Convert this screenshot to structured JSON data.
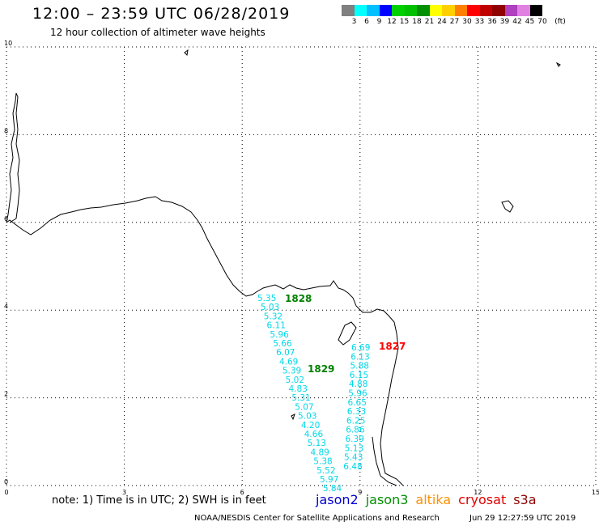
{
  "header": {
    "title": "12:00 – 23:59 UTC 06/28/2019",
    "subtitle": "12 hour collection of altimeter wave heights"
  },
  "legend": {
    "swatches": [
      "#808080",
      "#00ffff",
      "#00c0ff",
      "#0000ff",
      "#00d000",
      "#00c000",
      "#009000",
      "#ffff00",
      "#ffd000",
      "#ff8000",
      "#ff0000",
      "#c00000",
      "#900000",
      "#b040c0",
      "#e080e0",
      "#000000"
    ],
    "labels": [
      "3",
      "6",
      "9",
      "12",
      "15",
      "18",
      "21",
      "24",
      "27",
      "30",
      "33",
      "36",
      "39",
      "42",
      "45",
      "70"
    ],
    "unit": "(ft)"
  },
  "axes": {
    "x_ticks": [
      "0",
      "3",
      "6",
      "9",
      "12",
      "15"
    ],
    "y_ticks": [
      "0",
      "2",
      "4",
      "6",
      "8",
      "10"
    ]
  },
  "tracks": {
    "left_values": [
      "5.35",
      "5.03",
      "5.32",
      "6.11",
      "5.96",
      "5.66",
      "6.07",
      "4.69",
      "5.39",
      "5.02",
      "4.83",
      "5.31",
      "5.07",
      "5.03",
      "4.20",
      "4.66",
      "5.13",
      "4.89",
      "5.38",
      "5.52",
      "5.97",
      "5.84"
    ],
    "right_values": [
      "6.69",
      "6.13",
      "5.88",
      "6.15",
      "4.88",
      "5.96",
      "6.65",
      "6.33",
      "6.25",
      "6.86",
      "6.39",
      "5.13",
      "5.43",
      "6.48"
    ],
    "time_tags": [
      {
        "label": "1828",
        "color": "#008000"
      },
      {
        "label": "1829",
        "color": "#008000"
      },
      {
        "label": "1827",
        "color": "#ff0000"
      }
    ]
  },
  "footer": {
    "note": "note:  1) Time is in UTC;  2) SWH is in feet",
    "satellites": [
      {
        "name": "jason2",
        "color": "#0000d0"
      },
      {
        "name": "jason3",
        "color": "#009000"
      },
      {
        "name": "altika",
        "color": "#ff9000"
      },
      {
        "name": "cryosat",
        "color": "#e00000"
      },
      {
        "name": "s3a",
        "color": "#900000"
      }
    ],
    "credit": "NOAA/NESDIS Center for Satellite Applications and Research",
    "timestamp": "Jun 29 12:27:59 UTC 2019"
  }
}
